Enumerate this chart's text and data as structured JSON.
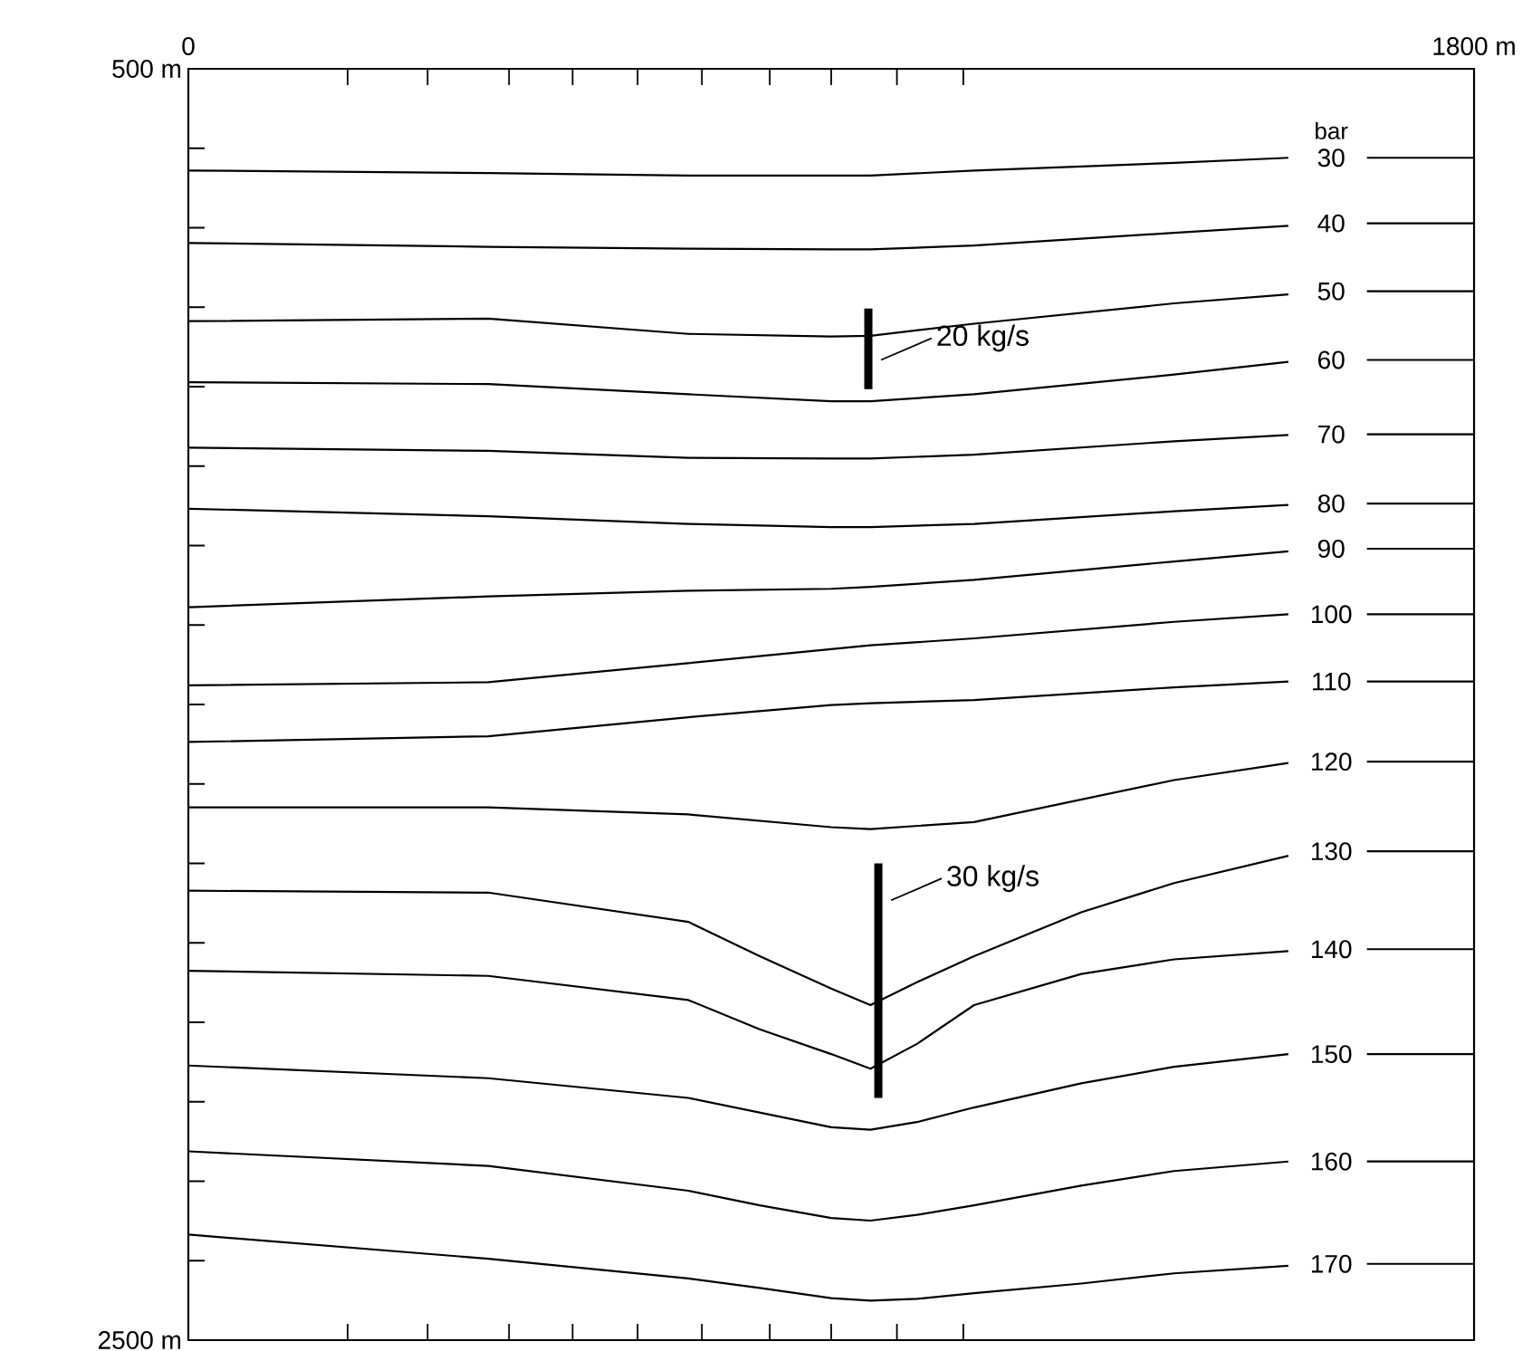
{
  "chart_data": {
    "type": "line",
    "xlim": [
      0,
      1800
    ],
    "ylim": [
      2500,
      500
    ],
    "xticks": [
      {
        "value": 0,
        "label": "0"
      },
      {
        "value": 223,
        "label": null
      },
      {
        "value": 335,
        "label": null
      },
      {
        "value": 449,
        "label": null
      },
      {
        "value": 538,
        "label": null
      },
      {
        "value": 629,
        "label": null
      },
      {
        "value": 719,
        "label": null
      },
      {
        "value": 814,
        "label": null
      },
      {
        "value": 900,
        "label": null
      },
      {
        "value": 992,
        "label": null
      },
      {
        "value": 1085,
        "label": null
      },
      {
        "value": 1800,
        "label": "1800 m"
      }
    ],
    "yticks": [
      {
        "value": 500,
        "label": "500 m"
      },
      {
        "value": 625,
        "label": null
      },
      {
        "value": 750,
        "label": null
      },
      {
        "value": 875,
        "label": null
      },
      {
        "value": 1000,
        "label": null
      },
      {
        "value": 1125,
        "label": null
      },
      {
        "value": 1250,
        "label": null
      },
      {
        "value": 1375,
        "label": null
      },
      {
        "value": 1500,
        "label": null
      },
      {
        "value": 1625,
        "label": null
      },
      {
        "value": 1750,
        "label": null
      },
      {
        "value": 1875,
        "label": null
      },
      {
        "value": 2000,
        "label": null
      },
      {
        "value": 2125,
        "label": null
      },
      {
        "value": 2250,
        "label": null
      },
      {
        "value": 2375,
        "label": null
      },
      {
        "value": 2500,
        "label": "2500 m"
      }
    ],
    "grid": false,
    "marker": "none",
    "line_style": "solid",
    "annotations": [
      "bar",
      {
        "text": "20 kg/s",
        "x": 952,
        "y": 958
      },
      {
        "text": "30 kg/s",
        "x": 966,
        "y": 1808
      }
    ],
    "series": [
      {
        "name": "30",
        "color": "#000000",
        "x": [
          0,
          420,
          700,
          900,
          955,
          1100,
          1380,
          1540,
          1600,
          1650,
          1800
        ],
        "values": [
          660,
          664,
          668,
          668,
          668,
          660,
          648,
          640,
          null,
          640,
          640
        ]
      },
      {
        "name": "40",
        "color": "#000000",
        "x": [
          0,
          420,
          700,
          900,
          955,
          1100,
          1380,
          1540,
          1600,
          1650,
          1800
        ],
        "values": [
          774,
          780,
          783,
          784,
          784,
          778,
          758,
          747,
          null,
          743,
          743
        ]
      },
      {
        "name": "50",
        "color": "#000000",
        "x": [
          0,
          420,
          700,
          900,
          955,
          1100,
          1380,
          1540,
          1600,
          1650,
          1800
        ],
        "values": [
          897,
          893,
          917,
          921,
          920,
          901,
          869,
          855,
          null,
          850,
          850
        ]
      },
      {
        "name": "60",
        "color": "#000000",
        "x": [
          0,
          420,
          700,
          900,
          955,
          1100,
          1380,
          1540,
          1600,
          1650,
          1800
        ],
        "values": [
          993,
          996,
          1012,
          1023,
          1023,
          1012,
          981,
          961,
          null,
          958,
          958
        ]
      },
      {
        "name": "70",
        "color": "#000000",
        "x": [
          0,
          420,
          700,
          900,
          955,
          1100,
          1380,
          1540,
          1600,
          1650,
          1800
        ],
        "values": [
          1096,
          1101,
          1112,
          1113,
          1113,
          1107,
          1086,
          1076,
          null,
          1075,
          1075
        ]
      },
      {
        "name": "80",
        "color": "#000000",
        "x": [
          0,
          420,
          700,
          900,
          955,
          1100,
          1380,
          1540,
          1600,
          1650,
          1800
        ],
        "values": [
          1192,
          1204,
          1216,
          1221,
          1221,
          1216,
          1196,
          1186,
          null,
          1184,
          1184
        ]
      },
      {
        "name": "90",
        "color": "#000000",
        "x": [
          0,
          420,
          700,
          900,
          955,
          1100,
          1380,
          1540,
          1600,
          1650,
          1800
        ],
        "values": [
          1347,
          1330,
          1321,
          1318,
          1315,
          1304,
          1275,
          1259,
          null,
          1255,
          1255
        ]
      },
      {
        "name": "100",
        "color": "#000000",
        "x": [
          0,
          420,
          700,
          900,
          955,
          1100,
          1380,
          1540,
          1600,
          1650,
          1800
        ],
        "values": [
          1470,
          1465,
          1435,
          1413,
          1407,
          1396,
          1370,
          1358,
          null,
          1358,
          1358
        ]
      },
      {
        "name": "110",
        "color": "#000000",
        "x": [
          0,
          420,
          700,
          900,
          955,
          1100,
          1380,
          1540,
          1600,
          1650,
          1800
        ],
        "values": [
          1559,
          1550,
          1520,
          1501,
          1498,
          1493,
          1473,
          1464,
          null,
          1464,
          1464
        ]
      },
      {
        "name": "120",
        "color": "#000000",
        "x": [
          0,
          420,
          700,
          900,
          955,
          1100,
          1380,
          1540,
          1600,
          1650,
          1800
        ],
        "values": [
          1662,
          1662,
          1673,
          1693,
          1696,
          1685,
          1619,
          1592,
          null,
          1590,
          1590
        ]
      },
      {
        "name": "130",
        "color": "#000000",
        "x": [
          0,
          420,
          700,
          800,
          900,
          955,
          1020,
          1100,
          1250,
          1380,
          1540,
          1600,
          1650,
          1800
        ],
        "values": [
          1793,
          1796,
          1842,
          1896,
          1947,
          1973,
          1937,
          1896,
          1827,
          1781,
          1738,
          null,
          1731,
          1731
        ]
      },
      {
        "name": "140",
        "color": "#000000",
        "x": [
          0,
          420,
          700,
          800,
          900,
          955,
          1020,
          1100,
          1250,
          1380,
          1540,
          1600,
          1650,
          1800
        ],
        "values": [
          1919,
          1927,
          1965,
          2011,
          2050,
          2073,
          2034,
          1973,
          1924,
          1901,
          1888,
          null,
          1885,
          1885
        ]
      },
      {
        "name": "150",
        "color": "#000000",
        "x": [
          0,
          420,
          700,
          800,
          900,
          955,
          1020,
          1100,
          1250,
          1380,
          1540,
          1600,
          1650,
          1800
        ],
        "values": [
          2068,
          2088,
          2119,
          2142,
          2165,
          2169,
          2157,
          2134,
          2096,
          2070,
          2050,
          null,
          2050,
          2050
        ]
      },
      {
        "name": "160",
        "color": "#000000",
        "x": [
          0,
          420,
          700,
          800,
          900,
          955,
          1020,
          1100,
          1250,
          1380,
          1540,
          1600,
          1650,
          1800
        ],
        "values": [
          2203,
          2226,
          2265,
          2288,
          2308,
          2312,
          2303,
          2288,
          2257,
          2234,
          2219,
          null,
          2219,
          2219
        ]
      },
      {
        "name": "170",
        "color": "#000000",
        "x": [
          0,
          420,
          700,
          800,
          900,
          955,
          1020,
          1100,
          1250,
          1380,
          1540,
          1600,
          1650,
          1800
        ],
        "values": [
          2334,
          2372,
          2403,
          2418,
          2434,
          2438,
          2435,
          2426,
          2411,
          2395,
          2383,
          null,
          2380,
          2380
        ]
      },
      {
        "color": "#000000",
        "x": [
          952,
          952
        ],
        "values": [
          877,
          1004
        ]
      },
      {
        "color": "#000000",
        "x": [
          966,
          966
        ],
        "values": [
          1750,
          2119
        ]
      }
    ]
  }
}
